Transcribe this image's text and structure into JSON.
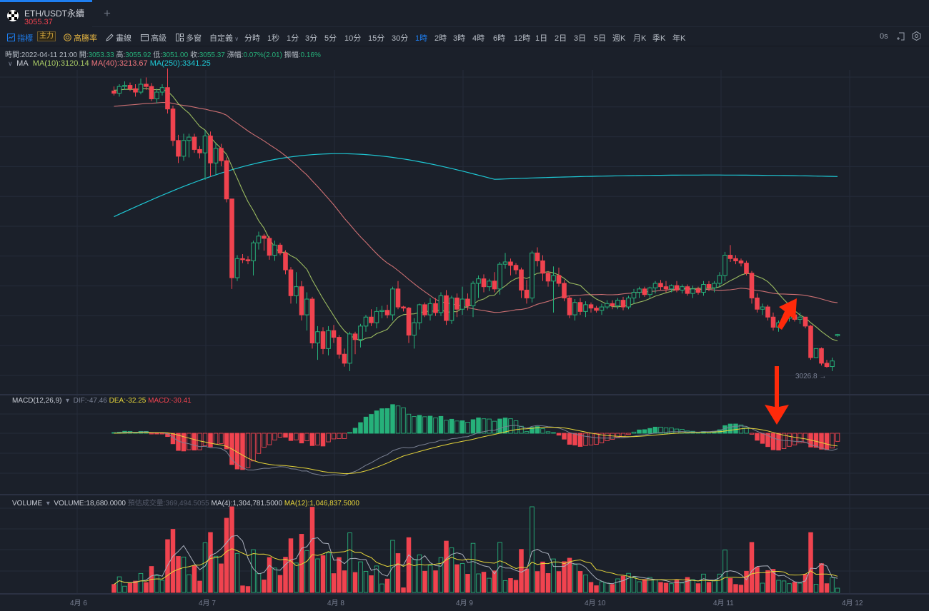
{
  "tab": {
    "symbol": "ETH/USDT永續",
    "price": "3055.37",
    "add": "+"
  },
  "toolbar": {
    "items": [
      {
        "label": "指標",
        "icon": "chart-line-icon",
        "active": true
      },
      {
        "label": "主力",
        "badge": true
      },
      {
        "label": "高勝率",
        "icon": "target-icon"
      },
      {
        "label": "畫線",
        "icon": "pencil-icon"
      },
      {
        "label": "高級",
        "icon": "window-icon"
      },
      {
        "label": "多窗",
        "icon": "multi-window-icon"
      },
      {
        "label": "自定義",
        "icon": "chevron-down-icon"
      }
    ],
    "timeframes": [
      "分時",
      "1秒",
      "1分",
      "3分",
      "5分",
      "10分",
      "15分",
      "30分",
      "1時",
      "2時",
      "3時",
      "4時",
      "6時",
      "12時",
      "1日",
      "2日",
      "3日",
      "5日",
      "週K",
      "月K",
      "季K",
      "年K"
    ],
    "active_timeframe": "1時",
    "countdown": "0s"
  },
  "info": {
    "time_label": "時間:",
    "time": "2022-04-11 21:00",
    "open_label": "開:",
    "open": "3053.33",
    "high_label": "高:",
    "high": "3055.92",
    "low_label": "低:",
    "low": "3051.00",
    "close_label": "收:",
    "close": "3055.37",
    "change_label": "漲幅:",
    "change": "0.07%(2.01)",
    "amp_label": "振幅:",
    "amp": "0.16%"
  },
  "ma": {
    "title": "MA",
    "ma10": "MA(10):3120.14",
    "ma40": "MA(40):3213.67",
    "ma250": "MA(250):3341.25"
  },
  "macd": {
    "title": "MACD(12,26,9)",
    "dif": "DIF:-47.46",
    "dea": "DEA:-32.25",
    "macd": "MACD:-30.41"
  },
  "volume": {
    "title": "VOLUME",
    "vol": "VOLUME:18,680.0000",
    "est": "預估成交量:369,494.5055",
    "ma4": "MA(4):1,304,781.5000",
    "ma12": "MA(12):1,046,837.5000"
  },
  "last_low_label": "3026.8 →",
  "colors": {
    "up": "#26b17a",
    "down": "#f0434f",
    "ma10": "#aacc66",
    "ma40": "#e0787a",
    "ma250": "#1ec8d5",
    "dif": "#7a8194",
    "dea": "#e6d53a",
    "arrow": "#ff2a0a",
    "bg": "#1b202a",
    "grid": "#252b3a"
  },
  "chart_data": {
    "type": "candlestick",
    "title": "ETH/USDT永續 1時",
    "x_ticks": [
      "4月 6",
      "4月 7",
      "4月 8",
      "4月 9",
      "4月 10",
      "4月 11",
      "4月 12"
    ],
    "ohlc": [
      [
        3488,
        3496,
        3480,
        3484
      ],
      [
        3484,
        3500,
        3478,
        3496
      ],
      [
        3496,
        3505,
        3490,
        3498
      ],
      [
        3498,
        3503,
        3488,
        3492
      ],
      [
        3492,
        3500,
        3478,
        3486
      ],
      [
        3486,
        3510,
        3482,
        3500
      ],
      [
        3500,
        3512,
        3490,
        3496
      ],
      [
        3496,
        3502,
        3470,
        3474
      ],
      [
        3474,
        3492,
        3466,
        3486
      ],
      [
        3486,
        3500,
        3480,
        3494
      ],
      [
        3494,
        3528,
        3448,
        3456
      ],
      [
        3456,
        3462,
        3390,
        3400
      ],
      [
        3400,
        3410,
        3360,
        3372
      ],
      [
        3372,
        3412,
        3364,
        3400
      ],
      [
        3400,
        3412,
        3370,
        3406
      ],
      [
        3406,
        3412,
        3378,
        3384
      ],
      [
        3384,
        3390,
        3368,
        3378
      ],
      [
        3378,
        3418,
        3330,
        3408
      ],
      [
        3408,
        3416,
        3336,
        3360
      ],
      [
        3360,
        3395,
        3340,
        3386
      ],
      [
        3386,
        3394,
        3354,
        3364
      ],
      [
        3364,
        3370,
        3290,
        3296
      ],
      [
        3296,
        3296,
        3136,
        3156
      ],
      [
        3156,
        3196,
        3150,
        3190
      ],
      [
        3190,
        3198,
        3182,
        3188
      ],
      [
        3188,
        3194,
        3180,
        3186
      ],
      [
        3186,
        3222,
        3160,
        3218
      ],
      [
        3218,
        3238,
        3206,
        3230
      ],
      [
        3230,
        3234,
        3204,
        3226
      ],
      [
        3226,
        3230,
        3188,
        3196
      ],
      [
        3196,
        3222,
        3186,
        3214
      ],
      [
        3214,
        3218,
        3196,
        3200
      ],
      [
        3200,
        3205,
        3162,
        3170
      ],
      [
        3170,
        3175,
        3110,
        3124
      ],
      [
        3124,
        3166,
        3110,
        3140
      ],
      [
        3140,
        3150,
        3080,
        3090
      ],
      [
        3090,
        3130,
        3062,
        3118
      ],
      [
        3118,
        3122,
        3030,
        3040
      ],
      [
        3040,
        3070,
        3010,
        3060
      ],
      [
        3060,
        3068,
        3020,
        3030
      ],
      [
        3030,
        3070,
        3018,
        3062
      ],
      [
        3062,
        3072,
        3040,
        3050
      ],
      [
        3050,
        3054,
        3012,
        3020
      ],
      [
        3020,
        3030,
        2998,
        3004
      ],
      [
        3004,
        3060,
        2990,
        3056
      ],
      [
        3056,
        3060,
        3020,
        3046
      ],
      [
        3046,
        3074,
        3032,
        3070
      ],
      [
        3070,
        3090,
        3060,
        3086
      ],
      [
        3086,
        3100,
        3070,
        3076
      ],
      [
        3076,
        3104,
        3066,
        3096
      ],
      [
        3096,
        3106,
        3084,
        3098
      ],
      [
        3098,
        3108,
        3084,
        3090
      ],
      [
        3090,
        3140,
        3080,
        3136
      ],
      [
        3136,
        3150,
        3100,
        3104
      ],
      [
        3104,
        3106,
        3096,
        3102
      ],
      [
        3102,
        3104,
        3040,
        3054
      ],
      [
        3054,
        3084,
        3030,
        3076
      ],
      [
        3076,
        3110,
        3064,
        3108
      ],
      [
        3108,
        3112,
        3086,
        3090
      ],
      [
        3090,
        3120,
        3080,
        3110
      ],
      [
        3110,
        3120,
        3088,
        3094
      ],
      [
        3094,
        3130,
        3088,
        3124
      ],
      [
        3124,
        3134,
        3072,
        3080
      ],
      [
        3080,
        3124,
        3074,
        3120
      ],
      [
        3120,
        3128,
        3086,
        3100
      ],
      [
        3100,
        3140,
        3090,
        3118
      ],
      [
        3118,
        3128,
        3098,
        3106
      ],
      [
        3106,
        3150,
        3086,
        3146
      ],
      [
        3146,
        3160,
        3120,
        3154
      ],
      [
        3154,
        3162,
        3130,
        3140
      ],
      [
        3140,
        3154,
        3132,
        3150
      ],
      [
        3150,
        3166,
        3130,
        3136
      ],
      [
        3136,
        3184,
        3126,
        3180
      ],
      [
        3180,
        3200,
        3172,
        3184
      ],
      [
        3184,
        3190,
        3160,
        3178
      ],
      [
        3178,
        3182,
        3162,
        3170
      ],
      [
        3170,
        3174,
        3120,
        3134
      ],
      [
        3134,
        3152,
        3110,
        3120
      ],
      [
        3120,
        3204,
        3112,
        3200
      ],
      [
        3200,
        3210,
        3176,
        3186
      ],
      [
        3186,
        3196,
        3150,
        3164
      ],
      [
        3164,
        3168,
        3140,
        3150
      ],
      [
        3150,
        3176,
        3094,
        3160
      ],
      [
        3160,
        3174,
        3140,
        3146
      ],
      [
        3146,
        3152,
        3114,
        3120
      ],
      [
        3120,
        3124,
        3084,
        3090
      ],
      [
        3090,
        3118,
        3080,
        3112
      ],
      [
        3112,
        3120,
        3090,
        3096
      ],
      [
        3096,
        3114,
        3086,
        3108
      ],
      [
        3108,
        3112,
        3094,
        3102
      ],
      [
        3102,
        3106,
        3094,
        3098
      ],
      [
        3098,
        3110,
        3090,
        3104
      ],
      [
        3104,
        3116,
        3100,
        3110
      ],
      [
        3110,
        3116,
        3100,
        3106
      ],
      [
        3106,
        3120,
        3100,
        3116
      ],
      [
        3116,
        3122,
        3098,
        3104
      ],
      [
        3104,
        3124,
        3100,
        3120
      ],
      [
        3120,
        3136,
        3110,
        3130
      ],
      [
        3130,
        3140,
        3120,
        3136
      ],
      [
        3136,
        3140,
        3122,
        3126
      ],
      [
        3126,
        3140,
        3120,
        3138
      ],
      [
        3138,
        3150,
        3128,
        3146
      ],
      [
        3146,
        3152,
        3134,
        3140
      ],
      [
        3140,
        3150,
        3130,
        3136
      ],
      [
        3136,
        3144,
        3130,
        3142
      ],
      [
        3142,
        3150,
        3130,
        3134
      ],
      [
        3134,
        3144,
        3128,
        3140
      ],
      [
        3140,
        3144,
        3124,
        3128
      ],
      [
        3128,
        3142,
        3120,
        3136
      ],
      [
        3136,
        3140,
        3126,
        3130
      ],
      [
        3130,
        3150,
        3124,
        3144
      ],
      [
        3144,
        3150,
        3132,
        3138
      ],
      [
        3138,
        3150,
        3130,
        3146
      ],
      [
        3146,
        3166,
        3140,
        3160
      ],
      [
        3160,
        3202,
        3150,
        3196
      ],
      [
        3196,
        3214,
        3184,
        3190
      ],
      [
        3190,
        3196,
        3180,
        3186
      ],
      [
        3186,
        3190,
        3176,
        3182
      ],
      [
        3182,
        3186,
        3160,
        3164
      ],
      [
        3164,
        3168,
        3110,
        3120
      ],
      [
        3120,
        3128,
        3094,
        3100
      ],
      [
        3100,
        3110,
        3090,
        3104
      ],
      [
        3104,
        3108,
        3080,
        3086
      ],
      [
        3086,
        3094,
        3062,
        3068
      ],
      [
        3068,
        3080,
        3060,
        3076
      ],
      [
        3076,
        3090,
        3072,
        3084
      ],
      [
        3084,
        3092,
        3078,
        3090
      ],
      [
        3090,
        3092,
        3078,
        3082
      ],
      [
        3082,
        3094,
        3074,
        3086
      ],
      [
        3086,
        3086,
        3066,
        3070
      ],
      [
        3070,
        3072,
        3010,
        3014
      ],
      [
        3014,
        3016,
        3026,
        3030
      ],
      [
        3030,
        3032,
        3000,
        3004
      ],
      [
        3004,
        3010,
        2996,
        2998
      ],
      [
        2998,
        3014,
        2990,
        3008
      ],
      [
        3053,
        3056,
        3051,
        3055
      ]
    ]
  }
}
